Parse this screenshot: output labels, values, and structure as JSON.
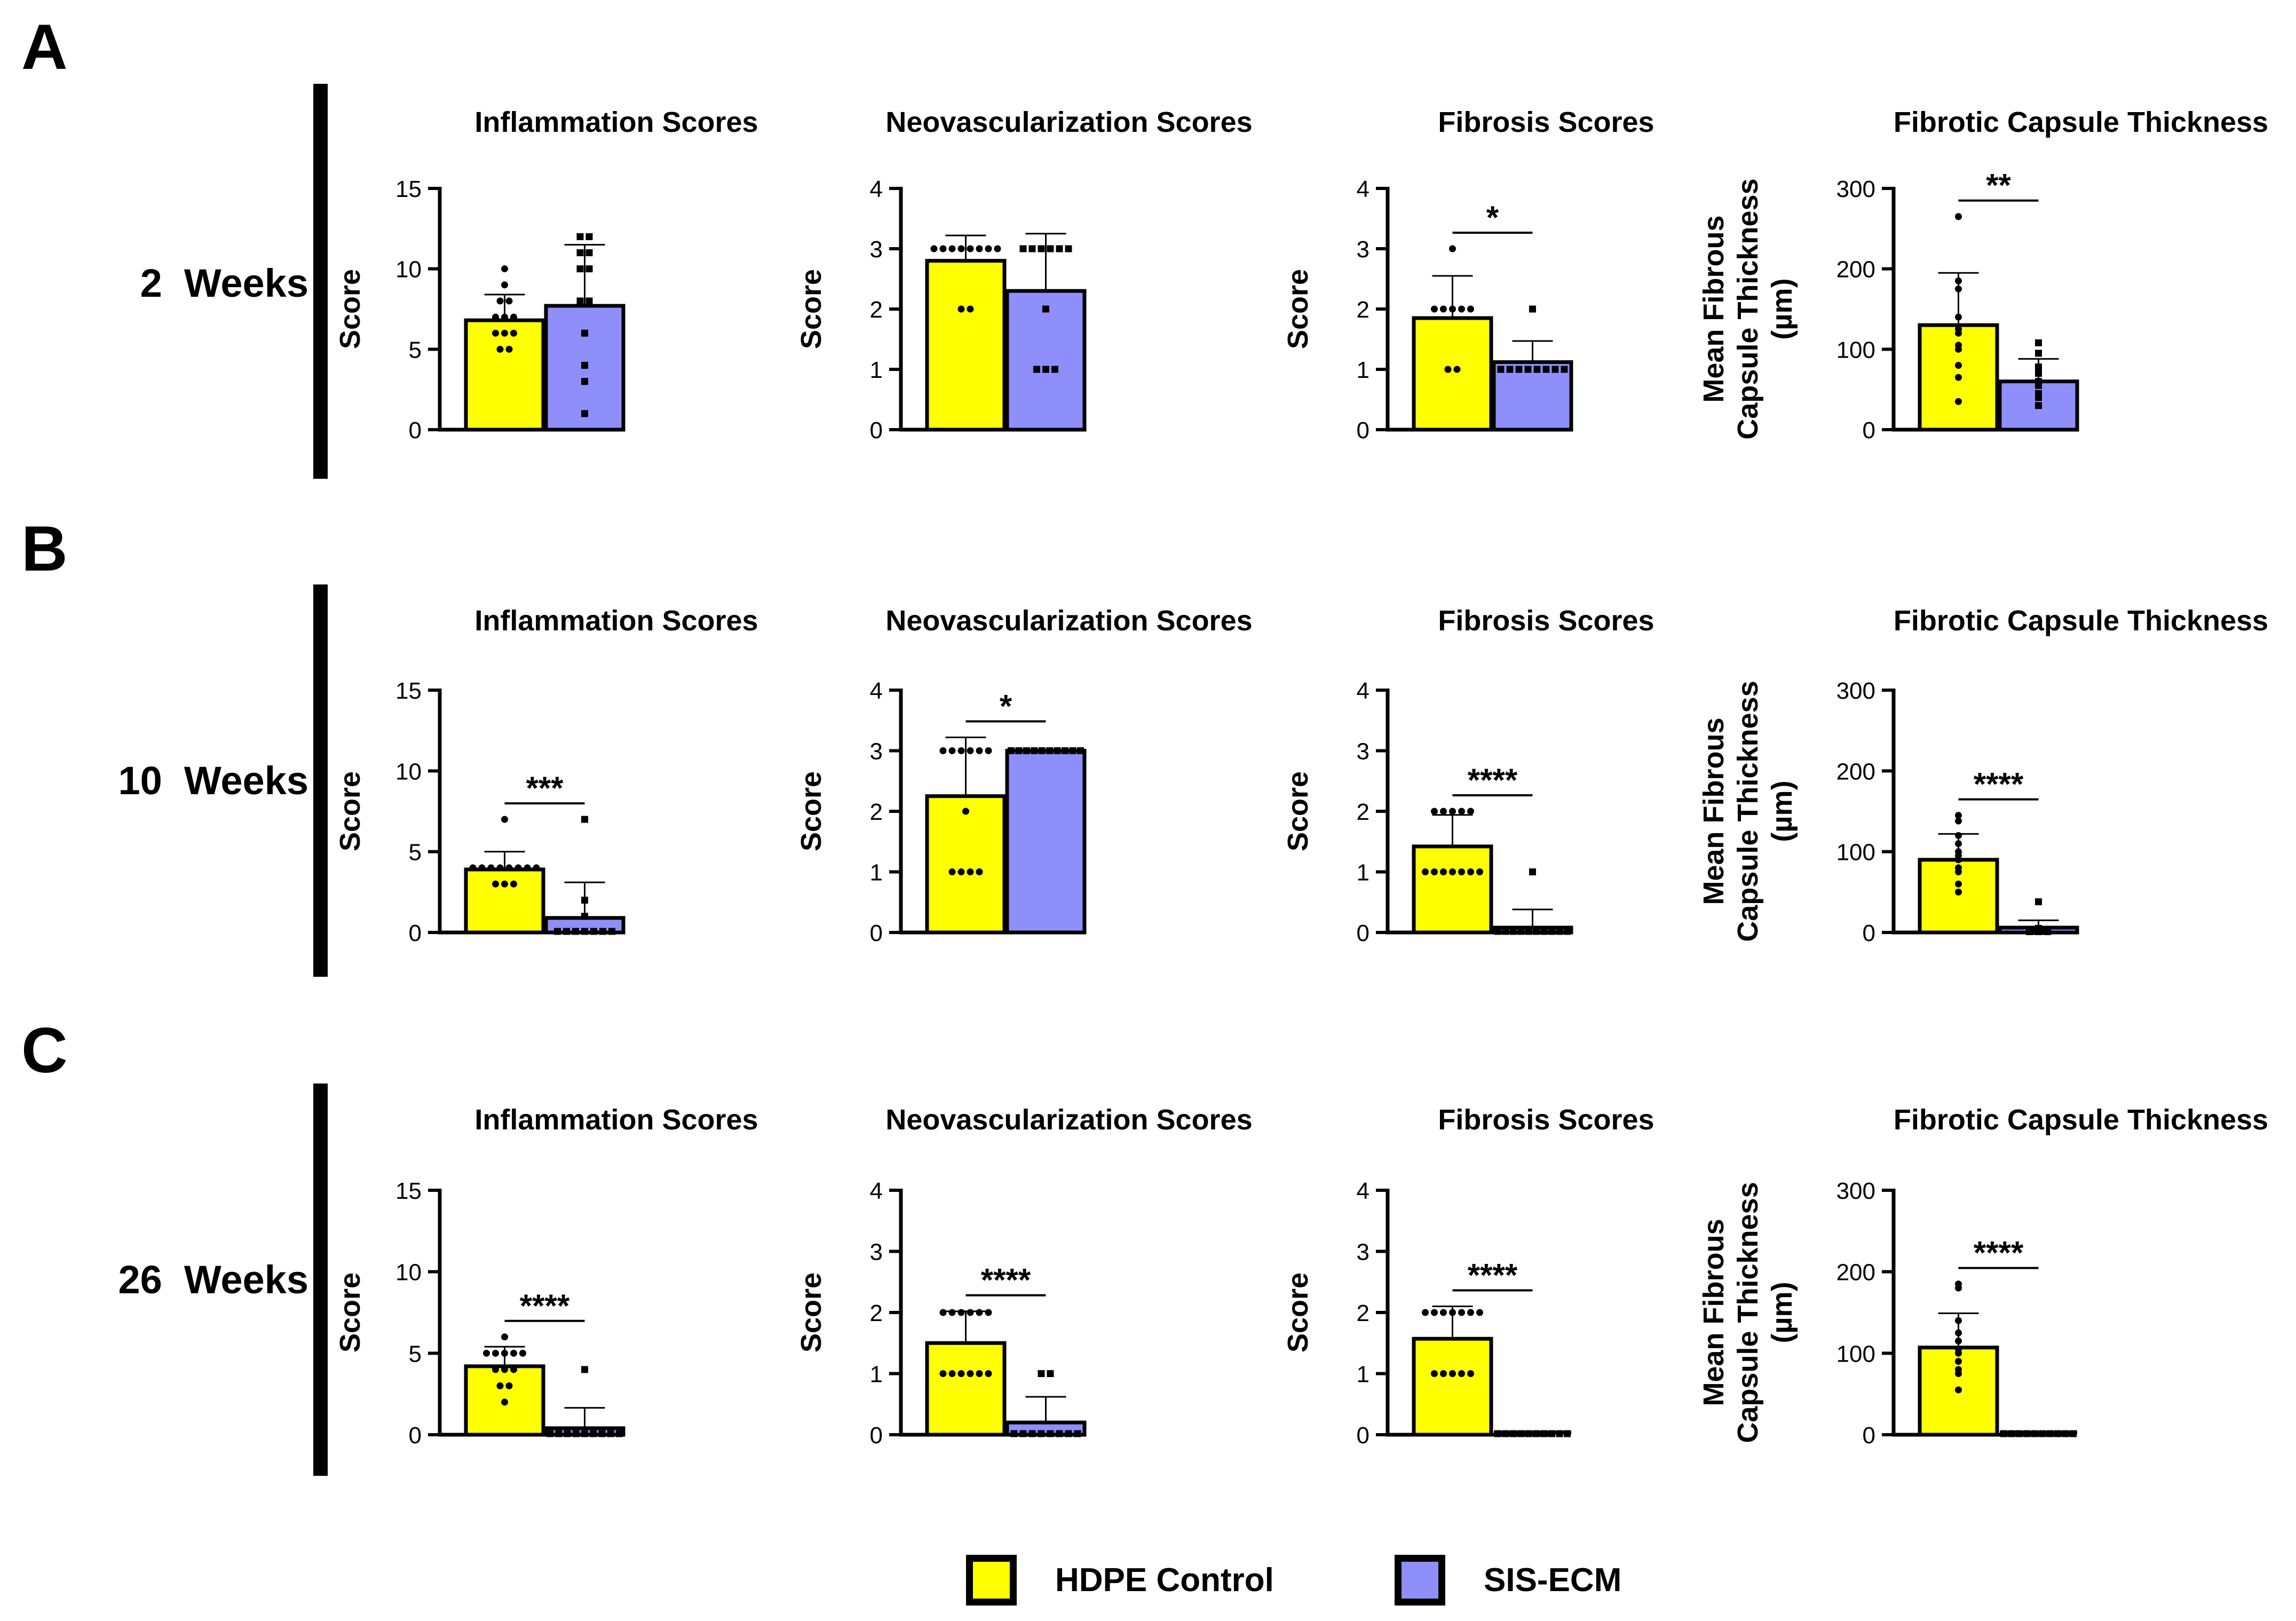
{
  "legend": {
    "items": [
      {
        "label": "HDPE Control",
        "color": "#ffff00"
      },
      {
        "label": "SIS-ECM",
        "color": "#8f8ffc"
      }
    ]
  },
  "panels": [
    {
      "letter": "A",
      "weeks_label": "2  Weeks"
    },
    {
      "letter": "B",
      "weeks_label": "10  Weeks"
    },
    {
      "letter": "C",
      "weeks_label": "26  Weeks"
    }
  ],
  "chart_data": [
    {
      "panel": "A",
      "type": "bar",
      "title": "Inflammation Scores",
      "ylabel": "Score",
      "ylim": [
        0,
        15
      ],
      "yticks": [
        0,
        5,
        10,
        15
      ],
      "categories": [
        "HDPE Control",
        "SIS-ECM"
      ],
      "series": [
        {
          "name": "HDPE Control",
          "value": 6.8,
          "sd": 1.6,
          "marker": "circle",
          "points": [
            10,
            9,
            8,
            8,
            7,
            7,
            7,
            6,
            6,
            6,
            5,
            5
          ]
        },
        {
          "name": "SIS-ECM",
          "value": 7.7,
          "sd": 3.8,
          "marker": "square",
          "points": [
            12,
            12,
            11,
            11,
            10,
            10,
            8,
            8,
            6,
            4,
            3,
            1
          ]
        }
      ],
      "significance": ""
    },
    {
      "panel": "A",
      "type": "bar",
      "title": "Neovascularization Scores",
      "ylabel": "Score",
      "ylim": [
        0,
        4
      ],
      "yticks": [
        0,
        1,
        2,
        3,
        4
      ],
      "categories": [
        "HDPE Control",
        "SIS-ECM"
      ],
      "series": [
        {
          "name": "HDPE Control",
          "value": 2.8,
          "sd": 0.42,
          "marker": "circle",
          "points": [
            3,
            3,
            3,
            3,
            3,
            3,
            3,
            3,
            2,
            2
          ]
        },
        {
          "name": "SIS-ECM",
          "value": 2.3,
          "sd": 0.95,
          "marker": "square",
          "points": [
            3,
            3,
            3,
            3,
            3,
            3,
            2,
            1,
            1,
            1
          ]
        }
      ],
      "significance": ""
    },
    {
      "panel": "A",
      "type": "bar",
      "title": "Fibrosis Scores",
      "ylabel": "Score",
      "ylim": [
        0,
        4
      ],
      "yticks": [
        0,
        1,
        2,
        3,
        4
      ],
      "categories": [
        "HDPE Control",
        "SIS-ECM"
      ],
      "series": [
        {
          "name": "HDPE Control",
          "value": 1.85,
          "sd": 0.7,
          "marker": "circle",
          "points": [
            3,
            2,
            2,
            2,
            2,
            2,
            1,
            1
          ]
        },
        {
          "name": "SIS-ECM",
          "value": 1.12,
          "sd": 0.35,
          "marker": "square",
          "points": [
            2,
            1,
            1,
            1,
            1,
            1,
            1,
            1,
            1
          ]
        }
      ],
      "significance": "*"
    },
    {
      "panel": "A",
      "type": "bar",
      "title": "Fibrotic Capsule Thickness",
      "ylabel": "Mean Fibrous Capsule Thickness (µm)",
      "ylim": [
        0,
        300
      ],
      "yticks": [
        0,
        100,
        200,
        300
      ],
      "categories": [
        "HDPE Control",
        "SIS-ECM"
      ],
      "series": [
        {
          "name": "HDPE Control",
          "value": 130,
          "sd": 65,
          "marker": "circle",
          "points": [
            265,
            185,
            175,
            140,
            125,
            120,
            105,
            100,
            80,
            65,
            35
          ]
        },
        {
          "name": "SIS-ECM",
          "value": 60,
          "sd": 28,
          "marker": "square",
          "points": [
            108,
            95,
            78,
            70,
            60,
            55,
            45,
            40,
            30
          ]
        }
      ],
      "significance": "**"
    },
    {
      "panel": "B",
      "type": "bar",
      "title": "Inflammation Scores",
      "ylabel": "Score",
      "ylim": [
        0,
        15
      ],
      "yticks": [
        0,
        5,
        10,
        15
      ],
      "categories": [
        "HDPE Control",
        "SIS-ECM"
      ],
      "series": [
        {
          "name": "HDPE Control",
          "value": 3.9,
          "sd": 1.1,
          "marker": "circle",
          "points": [
            7,
            4,
            4,
            4,
            4,
            4,
            4,
            4,
            4,
            3,
            3,
            3
          ]
        },
        {
          "name": "SIS-ECM",
          "value": 0.9,
          "sd": 2.2,
          "marker": "square",
          "points": [
            7,
            2,
            1,
            0,
            0,
            0,
            0,
            0,
            0,
            0
          ]
        }
      ],
      "significance": "***"
    },
    {
      "panel": "B",
      "type": "bar",
      "title": "Neovascularization Scores",
      "ylabel": "Score",
      "ylim": [
        0,
        4
      ],
      "yticks": [
        0,
        1,
        2,
        3,
        4
      ],
      "categories": [
        "HDPE Control",
        "SIS-ECM"
      ],
      "series": [
        {
          "name": "HDPE Control",
          "value": 2.25,
          "sd": 0.97,
          "marker": "circle",
          "points": [
            3,
            3,
            3,
            3,
            3,
            3,
            2,
            1,
            1,
            1,
            1
          ]
        },
        {
          "name": "SIS-ECM",
          "value": 3,
          "sd": 0,
          "marker": "square",
          "points": [
            3,
            3,
            3,
            3,
            3,
            3,
            3,
            3,
            3,
            3
          ]
        }
      ],
      "significance": "*"
    },
    {
      "panel": "B",
      "type": "bar",
      "title": "Fibrosis Scores",
      "ylabel": "Score",
      "ylim": [
        0,
        4
      ],
      "yticks": [
        0,
        1,
        2,
        3,
        4
      ],
      "categories": [
        "HDPE Control",
        "SIS-ECM"
      ],
      "series": [
        {
          "name": "HDPE Control",
          "value": 1.42,
          "sd": 0.52,
          "marker": "circle",
          "points": [
            2,
            2,
            2,
            2,
            2,
            1,
            1,
            1,
            1,
            1,
            1,
            1
          ]
        },
        {
          "name": "SIS-ECM",
          "value": 0.08,
          "sd": 0.3,
          "marker": "square",
          "points": [
            1,
            0,
            0,
            0,
            0,
            0,
            0,
            0,
            0,
            0,
            0
          ]
        }
      ],
      "significance": "****"
    },
    {
      "panel": "B",
      "type": "bar",
      "title": "Fibrotic Capsule Thickness",
      "ylabel": "Mean Fibrous Capsule Thickness (µm)",
      "ylim": [
        0,
        300
      ],
      "yticks": [
        0,
        100,
        200,
        300
      ],
      "categories": [
        "HDPE Control",
        "SIS-ECM"
      ],
      "series": [
        {
          "name": "HDPE Control",
          "value": 90,
          "sd": 32,
          "marker": "circle",
          "points": [
            145,
            138,
            120,
            110,
            100,
            95,
            90,
            80,
            75,
            60,
            50
          ]
        },
        {
          "name": "SIS-ECM",
          "value": 6,
          "sd": 9,
          "marker": "square",
          "points": [
            38,
            5,
            3,
            2,
            2,
            1,
            1,
            1,
            0,
            0
          ]
        }
      ],
      "significance": "****"
    },
    {
      "panel": "C",
      "type": "bar",
      "title": "Inflammation Scores",
      "ylabel": "Score",
      "ylim": [
        0,
        15
      ],
      "yticks": [
        0,
        5,
        10,
        15
      ],
      "categories": [
        "HDPE Control",
        "SIS-ECM"
      ],
      "series": [
        {
          "name": "HDPE Control",
          "value": 4.2,
          "sd": 1.2,
          "marker": "circle",
          "points": [
            6,
            5,
            5,
            5,
            5,
            5,
            4,
            4,
            4,
            3,
            3,
            2
          ]
        },
        {
          "name": "SIS-ECM",
          "value": 0.4,
          "sd": 1.25,
          "marker": "square",
          "points": [
            4,
            0,
            0,
            0,
            0,
            0,
            0,
            0,
            0,
            0
          ]
        }
      ],
      "significance": "****"
    },
    {
      "panel": "C",
      "type": "bar",
      "title": "Neovascularization Scores",
      "ylabel": "Score",
      "ylim": [
        0,
        4
      ],
      "yticks": [
        0,
        1,
        2,
        3,
        4
      ],
      "categories": [
        "HDPE Control",
        "SIS-ECM"
      ],
      "series": [
        {
          "name": "HDPE Control",
          "value": 1.5,
          "sd": 0.52,
          "marker": "circle",
          "points": [
            2,
            2,
            2,
            2,
            2,
            2,
            1,
            1,
            1,
            1,
            1,
            1
          ]
        },
        {
          "name": "SIS-ECM",
          "value": 0.2,
          "sd": 0.42,
          "marker": "square",
          "points": [
            1,
            1,
            0,
            0,
            0,
            0,
            0,
            0,
            0,
            0
          ]
        }
      ],
      "significance": "****"
    },
    {
      "panel": "C",
      "type": "bar",
      "title": "Fibrosis Scores",
      "ylabel": "Score",
      "ylim": [
        0,
        4
      ],
      "yticks": [
        0,
        1,
        2,
        3,
        4
      ],
      "categories": [
        "HDPE Control",
        "SIS-ECM"
      ],
      "series": [
        {
          "name": "HDPE Control",
          "value": 1.57,
          "sd": 0.53,
          "marker": "circle",
          "points": [
            2,
            2,
            2,
            2,
            2,
            2,
            2,
            1,
            1,
            1,
            1,
            1
          ]
        },
        {
          "name": "SIS-ECM",
          "value": 0,
          "sd": 0,
          "marker": "square",
          "points": [
            0,
            0,
            0,
            0,
            0,
            0,
            0,
            0,
            0,
            0
          ]
        }
      ],
      "significance": "****"
    },
    {
      "panel": "C",
      "type": "bar",
      "title": "Fibrotic Capsule Thickness",
      "ylabel": "Mean Fibrous Capsule Thickness (µm)",
      "ylim": [
        0,
        300
      ],
      "yticks": [
        0,
        100,
        200,
        300
      ],
      "categories": [
        "HDPE Control",
        "SIS-ECM"
      ],
      "series": [
        {
          "name": "HDPE Control",
          "value": 107,
          "sd": 42,
          "marker": "circle",
          "points": [
            185,
            180,
            140,
            125,
            115,
            105,
            100,
            90,
            80,
            75,
            55
          ]
        },
        {
          "name": "SIS-ECM",
          "value": 0,
          "sd": 0,
          "marker": "square",
          "points": [
            0,
            0,
            0,
            0,
            0,
            0,
            0,
            0,
            0,
            0
          ]
        }
      ],
      "significance": "****"
    }
  ]
}
